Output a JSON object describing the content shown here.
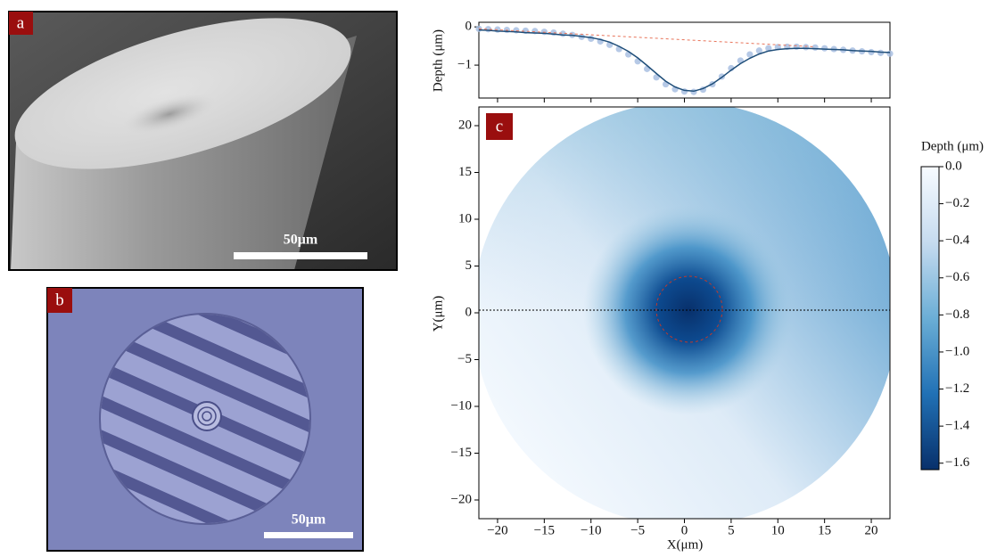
{
  "panels": [
    {
      "label": "a",
      "scale_bar": "50μm"
    },
    {
      "label": "b",
      "scale_bar": "50μm"
    }
  ],
  "chart_data": [
    {
      "type": "line",
      "ylabel": "Depth (μm)",
      "x": [
        -22,
        -21,
        -20,
        -19,
        -18,
        -17,
        -16,
        -15,
        -14,
        -13,
        -12,
        -11,
        -10,
        -9,
        -8,
        -7,
        -6,
        -5,
        -4,
        -3,
        -2,
        -1,
        0,
        1,
        2,
        3,
        4,
        5,
        6,
        7,
        8,
        9,
        10,
        11,
        12,
        13,
        14,
        15,
        16,
        17,
        18,
        19,
        20,
        21,
        22
      ],
      "series": [
        {
          "color": "#a9bfe2",
          "marker": "o",
          "values": [
            -0.05,
            -0.06,
            -0.07,
            -0.08,
            -0.09,
            -0.1,
            -0.11,
            -0.13,
            -0.15,
            -0.18,
            -0.21,
            -0.26,
            -0.31,
            -0.38,
            -0.47,
            -0.58,
            -0.72,
            -0.9,
            -1.1,
            -1.32,
            -1.5,
            -1.63,
            -1.69,
            -1.7,
            -1.64,
            -1.5,
            -1.3,
            -1.08,
            -0.88,
            -0.72,
            -0.62,
            -0.56,
            -0.53,
            -0.52,
            -0.52,
            -0.53,
            -0.54,
            -0.56,
            -0.58,
            -0.6,
            -0.62,
            -0.64,
            -0.66,
            -0.68,
            -0.7
          ]
        },
        {
          "color": "#1f4e79",
          "values": [
            -0.08,
            -0.09,
            -0.11,
            -0.12,
            -0.13,
            -0.15,
            -0.16,
            -0.17,
            -0.19,
            -0.21,
            -0.22,
            -0.25,
            -0.28,
            -0.33,
            -0.4,
            -0.51,
            -0.64,
            -0.81,
            -1.01,
            -1.22,
            -1.42,
            -1.57,
            -1.66,
            -1.68,
            -1.61,
            -1.49,
            -1.32,
            -1.13,
            -0.96,
            -0.82,
            -0.71,
            -0.63,
            -0.59,
            -0.57,
            -0.56,
            -0.56,
            -0.57,
            -0.58,
            -0.59,
            -0.6,
            -0.62,
            -0.63,
            -0.64,
            -0.66,
            -0.67
          ]
        },
        {
          "color": "#e8745a",
          "style": "dashed",
          "x": [
            -22,
            14
          ],
          "values": [
            -0.05,
            -0.52
          ]
        }
      ],
      "xlim": [
        -22,
        22
      ],
      "ylim": [
        -1.86,
        0.12
      ],
      "yticks": [
        0,
        {
          "value": -1,
          "label": "−1"
        }
      ]
    },
    {
      "type": "heatmap",
      "label": "c",
      "xlabel": "X(μm)",
      "ylabel": "Y(μm)",
      "xlim": [
        -22,
        22
      ],
      "ylim": [
        -22,
        22
      ],
      "xticks": [
        {
          "value": -20,
          "label": "−20"
        },
        {
          "value": -15,
          "label": "−15"
        },
        {
          "value": -10,
          "label": "−10"
        },
        {
          "value": -5,
          "label": "−5"
        },
        0,
        5,
        10,
        15,
        20
      ],
      "yticks": [
        {
          "value": -20,
          "label": "−20"
        },
        {
          "value": -15,
          "label": "−15"
        },
        {
          "value": -10,
          "label": "−10"
        },
        {
          "value": -5,
          "label": "−5"
        },
        0,
        5,
        10,
        15,
        20
      ],
      "cmap": [
        "#08306b",
        "#2171b5",
        "#6baed6",
        "#c6dbef",
        "#f7fbff"
      ],
      "colorbar": {
        "label": "Depth (μm)",
        "lim": [
          -1.635,
          0
        ],
        "ticks": [
          {
            "value": 0,
            "label": "0.0"
          },
          {
            "value": -0.2,
            "label": "−0.2"
          },
          {
            "value": -0.4,
            "label": "−0.4"
          },
          {
            "value": -0.6,
            "label": "−0.6"
          },
          {
            "value": -0.8,
            "label": "−0.8"
          },
          {
            "value": -1.0,
            "label": "−1.0"
          },
          {
            "value": -1.2,
            "label": "−1.2"
          },
          {
            "value": -1.4,
            "label": "−1.4"
          },
          {
            "value": -1.6,
            "label": "−1.6"
          }
        ]
      }
    }
  ]
}
